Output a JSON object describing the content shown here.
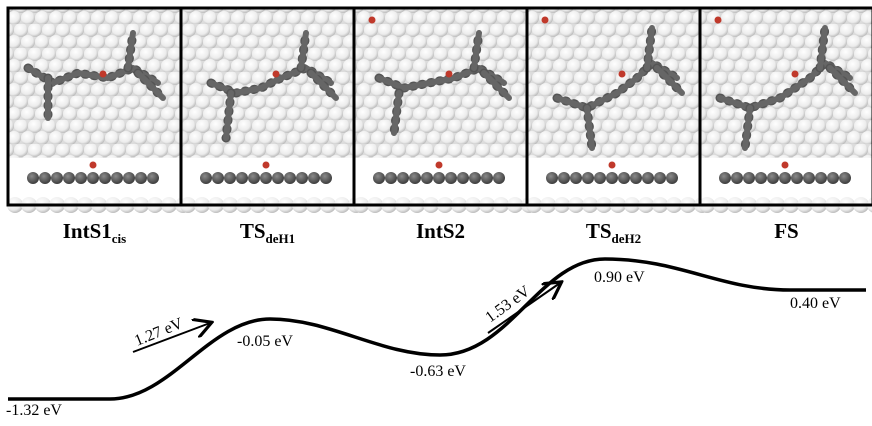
{
  "states": [
    {
      "label": "IntS1",
      "sub": "cis",
      "energy": "-1.32 eV"
    },
    {
      "label": "TS",
      "sub": "deH1",
      "energy": "-0.05 eV"
    },
    {
      "label": "IntS2",
      "energy": "-0.63 eV"
    },
    {
      "label": "TS",
      "sub": "deH2",
      "energy": "0.90 eV"
    },
    {
      "label": "FS",
      "energy": "0.40 eV"
    }
  ],
  "barriers": [
    "1.27 eV",
    "1.53 eV"
  ]
}
